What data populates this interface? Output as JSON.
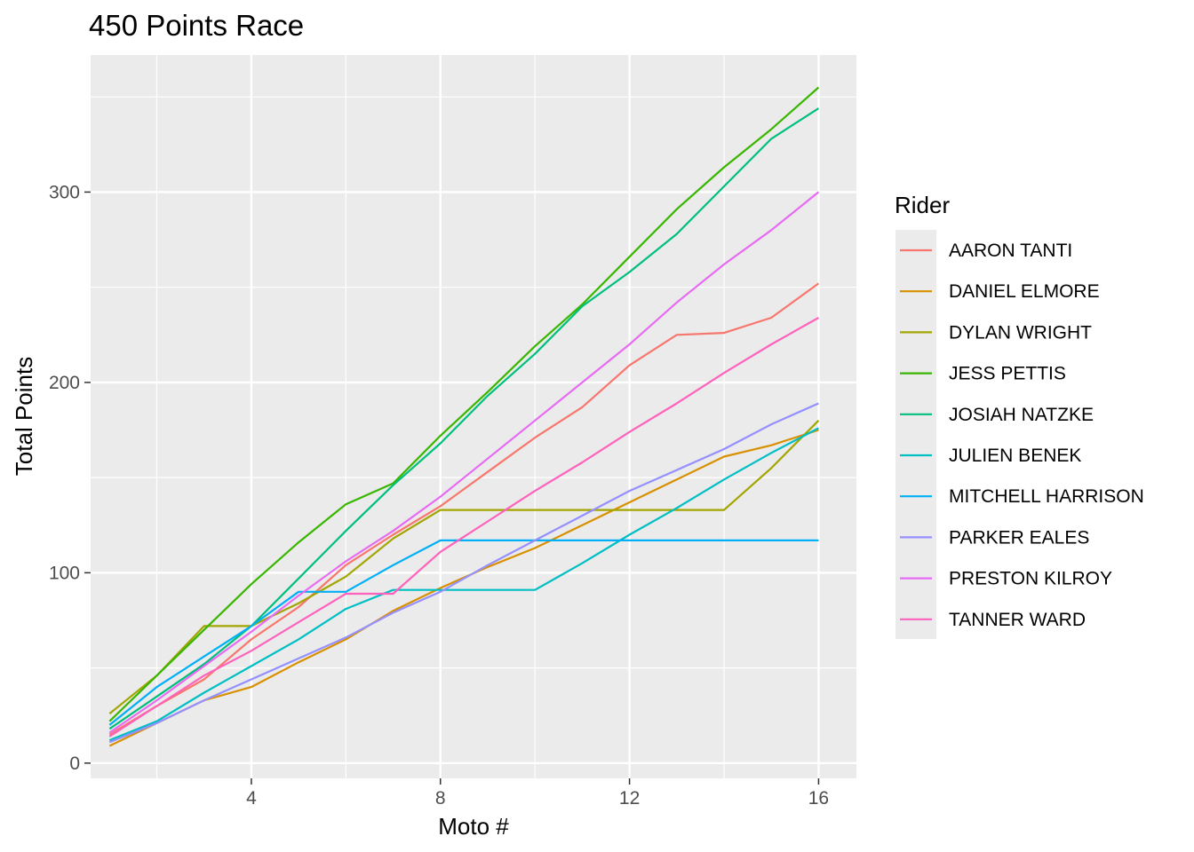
{
  "chart_data": {
    "type": "line",
    "title": "450 Points Race",
    "xlabel": "Moto #",
    "ylabel": "Total Points",
    "xlim": [
      0.6,
      16.8
    ],
    "ylim": [
      -8,
      372
    ],
    "x_ticks": [
      4,
      8,
      12,
      16
    ],
    "x_minor": [
      2,
      6,
      10,
      14
    ],
    "y_ticks": [
      0,
      100,
      200,
      300
    ],
    "y_minor": [
      50,
      150,
      250,
      350
    ],
    "grid": true,
    "legend": {
      "title": "Rider",
      "position": "right"
    },
    "x": [
      1,
      2,
      3,
      4,
      5,
      6,
      7,
      8,
      9,
      10,
      11,
      12,
      13,
      14,
      15,
      16
    ],
    "series": [
      {
        "name": "AARON TANTI",
        "color": "#F8766D",
        "values": [
          15,
          30,
          44,
          65,
          82,
          104,
          120,
          135,
          153,
          171,
          187,
          209,
          225,
          226,
          234,
          252
        ]
      },
      {
        "name": "DANIEL ELMORE",
        "color": "#D89000",
        "values": [
          9,
          21,
          33,
          40,
          53,
          65,
          80,
          92,
          103,
          113,
          125,
          137,
          149,
          161,
          167,
          175
        ]
      },
      {
        "name": "DYLAN WRIGHT",
        "color": "#A3A500",
        "values": [
          26,
          46,
          72,
          72,
          84,
          98,
          118,
          133,
          133,
          133,
          133,
          133,
          133,
          133,
          155,
          180
        ]
      },
      {
        "name": "JESS PETTIS",
        "color": "#39B600",
        "values": [
          22,
          46,
          70,
          94,
          116,
          136,
          147,
          172,
          195,
          219,
          241,
          266,
          291,
          313,
          333,
          355
        ]
      },
      {
        "name": "JOSIAH NATZKE",
        "color": "#00BF7D",
        "values": [
          18,
          35,
          52,
          72,
          97,
          122,
          146,
          168,
          193,
          215,
          240,
          258,
          278,
          303,
          328,
          344
        ]
      },
      {
        "name": "JULIEN BENEK",
        "color": "#00BFC4",
        "values": [
          12,
          22,
          37,
          51,
          65,
          81,
          91,
          91,
          91,
          91,
          105,
          120,
          134,
          149,
          163,
          176
        ]
      },
      {
        "name": "MITCHELL HARRISON",
        "color": "#00B0F6",
        "values": [
          20,
          40,
          56,
          72,
          90,
          90,
          104,
          117,
          117,
          117,
          117,
          117,
          117,
          117,
          117,
          117
        ]
      },
      {
        "name": "PARKER EALES",
        "color": "#9590FF",
        "values": [
          11,
          21,
          33,
          44,
          55,
          66,
          79,
          90,
          104,
          117,
          130,
          143,
          154,
          165,
          178,
          189
        ]
      },
      {
        "name": "PRESTON KILROY",
        "color": "#E76BF3",
        "values": [
          16,
          33,
          51,
          69,
          88,
          106,
          122,
          140,
          160,
          180,
          200,
          220,
          242,
          262,
          280,
          300
        ]
      },
      {
        "name": "TANNER WARD",
        "color": "#FF62BC",
        "values": [
          14,
          30,
          46,
          59,
          74,
          89,
          89,
          111,
          127,
          143,
          158,
          174,
          189,
          205,
          220,
          234
        ]
      }
    ]
  }
}
